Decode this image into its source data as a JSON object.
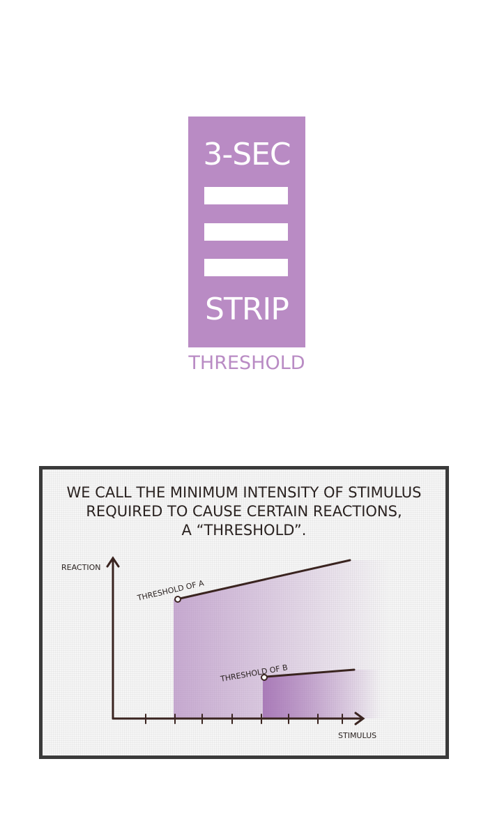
{
  "logo": {
    "top_text": "3-SEC",
    "bottom_text": "STRIP",
    "color": "#b98bc4"
  },
  "subtitle": "THRESHOLD",
  "panel": {
    "caption_lines": [
      "WE CALL THE MINIMUM INTENSITY OF STIMULUS",
      "REQUIRED TO CAUSE CERTAIN REACTIONS,",
      "A “THRESHOLD”."
    ],
    "y_label": "REACTION",
    "x_label": "STIMULUS",
    "label_a": "THRESHOLD OF A",
    "label_b": "THRESHOLD OF B",
    "shade_color": "#a878b8",
    "ink_color": "#3a2420"
  }
}
